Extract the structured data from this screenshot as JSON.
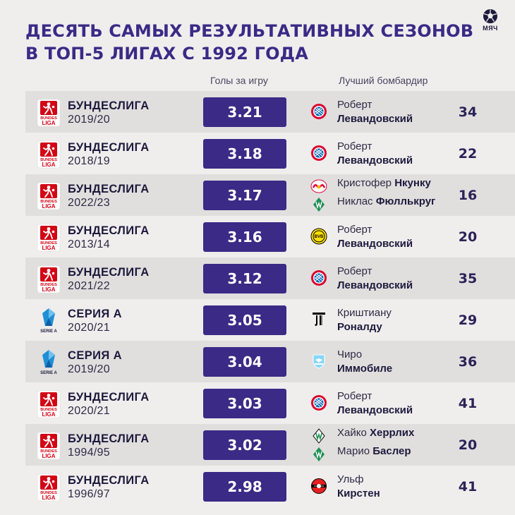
{
  "header": {
    "title_line1": "ДЕСЯТЬ САМЫХ РЕЗУЛЬТАТИВНЫХ СЕЗОНОВ",
    "title_line2": "В ТОП-5 ЛИГАХ С 1992 ГОДА",
    "brand": "МЯЧ"
  },
  "columns": {
    "goals_per_game": "Голы за игру",
    "top_scorer": "Лучший бомбардир"
  },
  "logos": {
    "bundesliga_top": "BUNDES",
    "bundesliga_bottom": "LIGA",
    "seriea": "SERIE A"
  },
  "rows": [
    {
      "league": "БУНДЕСЛИГА",
      "season": "2019/20",
      "gpg": "3.21",
      "s1_first": "Роберт",
      "s1_last": "Левандовский",
      "goals": "34",
      "club": "bayern-icon"
    },
    {
      "league": "БУНДЕСЛИГА",
      "season": "2018/19",
      "gpg": "3.18",
      "s1_first": "Роберт",
      "s1_last": "Левандовский",
      "goals": "22",
      "club": "bayern-icon"
    },
    {
      "league": "БУНДЕСЛИГА",
      "season": "2022/23",
      "gpg": "3.17",
      "s1_first": "Кристофер",
      "s1_last": "Нкунку",
      "s2_first": "Никлас",
      "s2_last": "Фюллькруг",
      "goals": "16",
      "club": "leipzig-icon",
      "club2": "werder-icon"
    },
    {
      "league": "БУНДЕСЛИГА",
      "season": "2013/14",
      "gpg": "3.16",
      "s1_first": "Роберт",
      "s1_last": "Левандовский",
      "goals": "20",
      "club": "dortmund-icon"
    },
    {
      "league": "БУНДЕСЛИГА",
      "season": "2021/22",
      "gpg": "3.12",
      "s1_first": "Роберт",
      "s1_last": "Левандовский",
      "goals": "35",
      "club": "bayern-icon"
    },
    {
      "league": "СЕРИЯ А",
      "season": "2020/21",
      "gpg": "3.05",
      "s1_first": "Криштиану",
      "s1_last": "Роналду",
      "goals": "29",
      "club": "juventus-icon"
    },
    {
      "league": "СЕРИЯ А",
      "season": "2019/20",
      "gpg": "3.04",
      "s1_first": "Чиро",
      "s1_last": "Иммобиле",
      "goals": "36",
      "club": "lazio-icon"
    },
    {
      "league": "БУНДЕСЛИГА",
      "season": "2020/21",
      "gpg": "3.03",
      "s1_first": "Роберт",
      "s1_last": "Левандовский",
      "goals": "41",
      "club": "bayern-icon"
    },
    {
      "league": "БУНДЕСЛИГА",
      "season": "1994/95",
      "gpg": "3.02",
      "s1_first": "Хайко",
      "s1_last": "Херрлих",
      "s2_first": "Марио",
      "s2_last": "Баслер",
      "goals": "20",
      "club": "gladbach-icon",
      "club2": "werder-icon"
    },
    {
      "league": "БУНДЕСЛИГА",
      "season": "1996/97",
      "gpg": "2.98",
      "s1_first": "Ульф",
      "s1_last": "Кирстен",
      "goals": "41",
      "club": "leverkusen-icon"
    }
  ],
  "colors": {
    "accent": "#3b2a86",
    "background": "#efeeed",
    "row_alt": "#e0dfde",
    "bundesliga_red": "#d20515",
    "seriea_blue": "#1f8fd6"
  }
}
